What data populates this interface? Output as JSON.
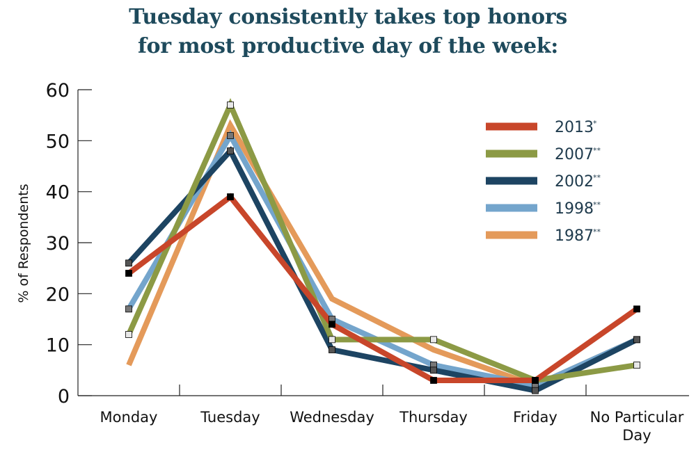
{
  "chart_data": {
    "type": "line",
    "title_line1": "Tuesday consistently takes top honors",
    "title_line2": "for most productive day of the week:",
    "ylabel": "% of Respondents",
    "xlabel": "",
    "ylim": [
      0,
      60
    ],
    "yticks": [
      "0",
      "10",
      "20",
      "30",
      "40",
      "50",
      "60"
    ],
    "categories": [
      "Monday",
      "Tuesday",
      "Wednesday",
      "Thursday",
      "Friday",
      "No Particular|Day"
    ],
    "legend_position": "top-right",
    "series": [
      {
        "name": "2013",
        "mark": "*",
        "color": "#c8462a",
        "values": [
          24,
          39,
          14,
          3,
          3,
          17
        ]
      },
      {
        "name": "2007",
        "mark": "**",
        "color": "#8c9a45",
        "values": [
          12,
          57,
          11,
          11,
          3,
          6
        ]
      },
      {
        "name": "2002",
        "mark": "**",
        "color": "#1d4462",
        "values": [
          26,
          48,
          9,
          5,
          1,
          11
        ]
      },
      {
        "name": "1998",
        "mark": "**",
        "color": "#74a5cc",
        "values": [
          17,
          51,
          15,
          6,
          2,
          11
        ]
      },
      {
        "name": "1987",
        "mark": "**",
        "color": "#e49a5a",
        "values": [
          6,
          53,
          19,
          9,
          2,
          11
        ]
      }
    ]
  }
}
